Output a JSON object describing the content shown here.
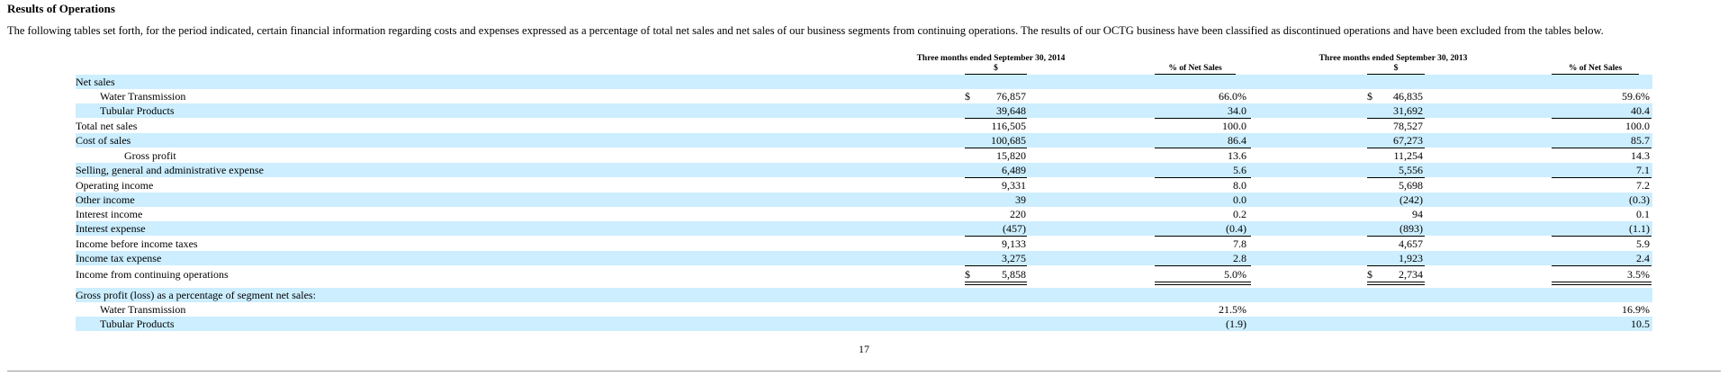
{
  "section_title": "Results of Operations",
  "intro_text": "The following tables set forth, for the period indicated, certain financial information regarding costs and expenses expressed as a percentage of total net sales and net sales of our business segments from continuing operations. The results of our OCTG business have been classified as discontinued operations and have been excluded from the tables below.",
  "periods": [
    {
      "label": "Three months ended September 30, 2014",
      "col_amount": "$",
      "col_pct": "% of Net Sales"
    },
    {
      "label": "Three months ended September 30, 2013",
      "col_amount": "$",
      "col_pct": "% of Net Sales"
    }
  ],
  "rows": [
    {
      "label": "Net sales",
      "indent": 0,
      "shaded": true,
      "cells": [
        "",
        "",
        "",
        ""
      ]
    },
    {
      "label": "Water Transmission",
      "indent": 1,
      "shaded": false,
      "cells": [
        "76,857",
        "66.0%",
        "46,835",
        "59.6%"
      ],
      "dollar": true
    },
    {
      "label": "Tubular Products",
      "indent": 1,
      "shaded": true,
      "cells": [
        "39,648",
        "34.0",
        "31,692",
        "40.4"
      ],
      "under": "single"
    },
    {
      "label": "Total net sales",
      "indent": 0,
      "shaded": false,
      "cells": [
        "116,505",
        "100.0",
        "78,527",
        "100.0"
      ]
    },
    {
      "label": "Cost of sales",
      "indent": 0,
      "shaded": true,
      "cells": [
        "100,685",
        "86.4",
        "67,273",
        "85.7"
      ],
      "under": "single"
    },
    {
      "label": "Gross profit",
      "indent": 2,
      "shaded": false,
      "cells": [
        "15,820",
        "13.6",
        "11,254",
        "14.3"
      ]
    },
    {
      "label": "Selling, general and administrative expense",
      "indent": 0,
      "shaded": true,
      "cells": [
        "6,489",
        "5.6",
        "5,556",
        "7.1"
      ],
      "under": "single"
    },
    {
      "label": "Operating income",
      "indent": 0,
      "shaded": false,
      "cells": [
        "9,331",
        "8.0",
        "5,698",
        "7.2"
      ]
    },
    {
      "label": "Other income",
      "indent": 0,
      "shaded": true,
      "cells": [
        "39",
        "0.0",
        "(242)",
        "(0.3)"
      ]
    },
    {
      "label": "Interest income",
      "indent": 0,
      "shaded": false,
      "cells": [
        "220",
        "0.2",
        "94",
        "0.1"
      ]
    },
    {
      "label": "Interest expense",
      "indent": 0,
      "shaded": true,
      "cells": [
        "(457)",
        "(0.4)",
        "(893)",
        "(1.1)"
      ],
      "under": "single"
    },
    {
      "label": "Income before income taxes",
      "indent": 0,
      "shaded": false,
      "cells": [
        "9,133",
        "7.8",
        "4,657",
        "5.9"
      ]
    },
    {
      "label": "Income tax expense",
      "indent": 0,
      "shaded": true,
      "cells": [
        "3,275",
        "2.8",
        "1,923",
        "2.4"
      ],
      "under": "single"
    },
    {
      "label": "Income from continuing operations",
      "indent": 0,
      "shaded": false,
      "cells": [
        "5,858",
        "5.0%",
        "2,734",
        "3.5%"
      ],
      "dollar": true,
      "under": "double"
    },
    {
      "label": "Gross profit (loss) as a percentage of segment net sales:",
      "indent": 0,
      "shaded": true,
      "cells": [
        "",
        "",
        "",
        ""
      ]
    },
    {
      "label": "Water Transmission",
      "indent": 1,
      "shaded": false,
      "cells": [
        "",
        "21.5%",
        "",
        "16.9%"
      ]
    },
    {
      "label": "Tubular Products",
      "indent": 1,
      "shaded": true,
      "cells": [
        "",
        "(1.9)",
        "",
        "10.5"
      ]
    }
  ],
  "currency_symbol": "$",
  "page_number": "17"
}
